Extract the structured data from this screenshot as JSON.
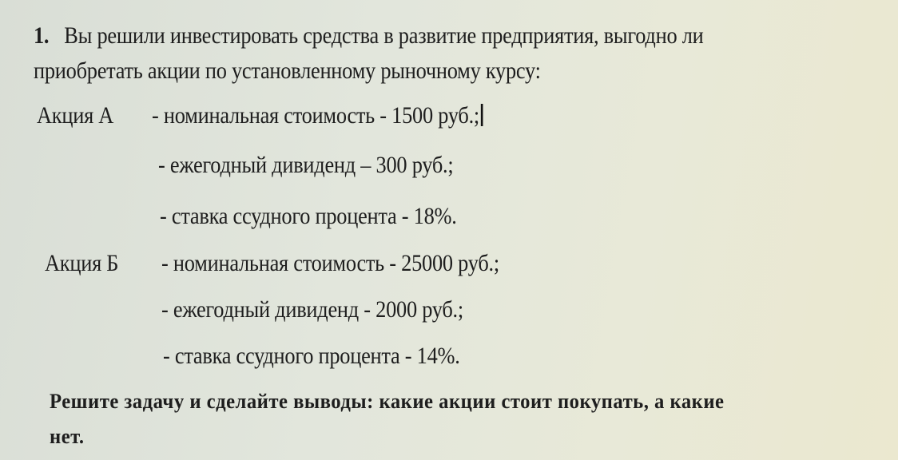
{
  "task": {
    "number": "1.",
    "intro_line1": "Вы решили инвестировать средства  в развитие предприятия, выгодно ли",
    "intro_line2": "приобретать акции по установленному рыночному курсу:"
  },
  "stock_a": {
    "label": "Акция  А",
    "items": [
      "-  номинальная стоимость - 1500 руб.;",
      "- ежегодный дивиденд – 300 руб.;",
      "- ставка ссудного процента -  18%."
    ]
  },
  "stock_b": {
    "label": "Акция  Б",
    "items": [
      "- номинальная стоимость - 25000 руб.;",
      "- ежегодный дивиденд - 2000 руб.;",
      "- ставка ссудного процента - 14%."
    ]
  },
  "conclusion": {
    "line1": "Решите задачу и сделайте выводы:  какие акции стоит покупать, а какие",
    "line2": "нет."
  }
}
